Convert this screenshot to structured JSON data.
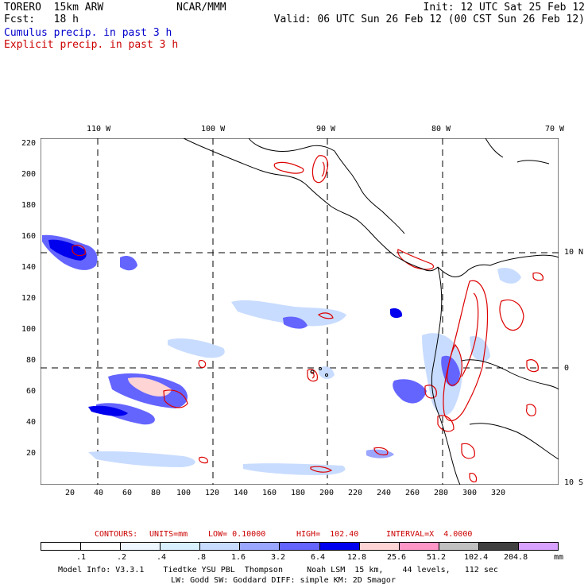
{
  "header": {
    "model": "TORERO  15km ARW",
    "org": "NCAR/MMM",
    "init": "Init: 12 UTC Sat 25 Feb 12",
    "fcst": "Fcst:   18 h",
    "valid": "Valid: 06 UTC Sun 26 Feb 12 (00 CST Sun 26 Feb 12)",
    "line1": "Cumulus precip. in past 3 h",
    "line2": "Explicit precip. in past 3 h"
  },
  "map": {
    "lon_labels": [
      "110 W",
      "100 W",
      "90 W",
      "80 W",
      "70 W"
    ],
    "lat_labels": [
      "10 N",
      "0",
      "10 S"
    ],
    "y_ticks": [
      "220",
      "200",
      "180",
      "160",
      "140",
      "120",
      "100",
      "80",
      "60",
      "40",
      "20"
    ],
    "x_ticks": [
      "20",
      "40",
      "60",
      "80",
      "100",
      "120",
      "140",
      "160",
      "180",
      "200",
      "220",
      "240",
      "260",
      "280",
      "300",
      "320"
    ]
  },
  "contours": {
    "label": "CONTOURS:",
    "units": "UNITS=mm",
    "low": "LOW= 0.10000",
    "high": "HIGH=  102.40",
    "interval": "INTERVAL=X  4.0000"
  },
  "colorbar": {
    "colors": [
      "#ffffff",
      "#ffffff",
      "#eef6ff",
      "#d8f0ff",
      "#c8dcff",
      "#9aa6ff",
      "#6464ff",
      "#0000ee",
      "#ffd4d4",
      "#ff96c8",
      "#c0c0c0",
      "#404040",
      "#d8a0ff"
    ],
    "ticks": [
      ".1",
      ".2",
      ".4",
      ".8",
      "1.6",
      "3.2",
      "6.4",
      "12.8",
      "25.6",
      "51.2",
      "102.4",
      "204.8"
    ],
    "unit": "mm"
  },
  "footer": {
    "line1": "Model Info: V3.3.1    Tiedtke YSU PBL  Thompson     Noah LSM  15 km,    44 levels,   112 sec",
    "line2": "LW: Godd SW: Goddard DIFF: simple KM: 2D Smagor"
  }
}
